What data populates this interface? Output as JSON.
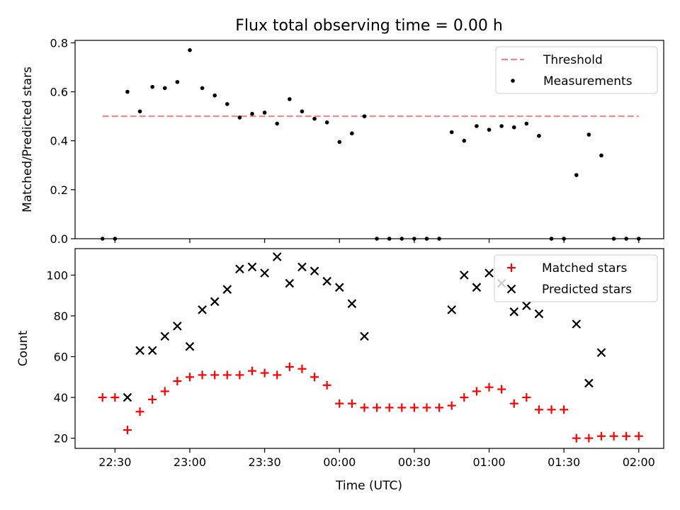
{
  "chart_data": {
    "type": "scatter",
    "title": "Flux total observing time = 0.00 h",
    "xlabel": "Time (UTC)",
    "x_ticks": [
      "22:30",
      "23:00",
      "23:30",
      "00:00",
      "00:30",
      "01:00",
      "01:30",
      "02:00"
    ],
    "x_tick_minutes": [
      1350,
      1380,
      1410,
      1440,
      1470,
      1500,
      1530,
      1560
    ],
    "x_range_minutes": [
      1334,
      1570
    ],
    "colors": {
      "threshold": "#ff7f7f",
      "measurements": "#000000",
      "matched": "#ff0000",
      "predicted": "#000000"
    },
    "panels": [
      {
        "ylabel": "Matched/Predicted stars",
        "ylim": [
          0,
          0.81
        ],
        "y_ticks": [
          "0.0",
          "0.2",
          "0.4",
          "0.6",
          "0.8"
        ],
        "y_tick_values": [
          0,
          0.2,
          0.4,
          0.6,
          0.8
        ],
        "legend": {
          "position": "top-right",
          "entries": [
            "Threshold",
            "Measurements"
          ]
        },
        "series": [
          {
            "name": "Threshold",
            "kind": "dashed-line",
            "x": [
              1345,
              1560
            ],
            "y": [
              0.5,
              0.5
            ]
          },
          {
            "name": "Measurements",
            "kind": "dot",
            "x": [
              1345,
              1350,
              1355,
              1360,
              1365,
              1370,
              1375,
              1380,
              1385,
              1390,
              1395,
              1400,
              1405,
              1410,
              1415,
              1420,
              1425,
              1430,
              1435,
              1440,
              1445,
              1450,
              1455,
              1460,
              1465,
              1470,
              1475,
              1480,
              1485,
              1490,
              1495,
              1500,
              1505,
              1510,
              1515,
              1520,
              1525,
              1530,
              1535,
              1540,
              1545,
              1550,
              1555,
              1560
            ],
            "y": [
              0,
              0,
              0.6,
              0.52,
              0.62,
              0.615,
              0.64,
              0.77,
              0.615,
              0.585,
              0.55,
              0.495,
              0.51,
              0.515,
              0.47,
              0.57,
              0.52,
              0.49,
              0.475,
              0.395,
              0.43,
              0.5,
              0,
              0,
              0,
              0,
              0,
              0,
              0.435,
              0.4,
              0.46,
              0.445,
              0.46,
              0.455,
              0.47,
              0.42,
              0,
              0,
              0.26,
              0.425,
              0.34,
              0,
              0,
              0
            ]
          }
        ]
      },
      {
        "ylabel": "Count",
        "ylim": [
          15,
          113
        ],
        "y_ticks": [
          "20",
          "40",
          "60",
          "80",
          "100"
        ],
        "y_tick_values": [
          20,
          40,
          60,
          80,
          100
        ],
        "legend": {
          "position": "top-right",
          "entries": [
            "Matched stars",
            "Predicted stars"
          ]
        },
        "series": [
          {
            "name": "Matched stars",
            "kind": "plus",
            "x": [
              1345,
              1350,
              1355,
              1360,
              1365,
              1370,
              1375,
              1380,
              1385,
              1390,
              1395,
              1400,
              1405,
              1410,
              1415,
              1420,
              1425,
              1430,
              1435,
              1440,
              1445,
              1450,
              1455,
              1460,
              1465,
              1470,
              1475,
              1480,
              1485,
              1490,
              1495,
              1500,
              1505,
              1510,
              1515,
              1520,
              1525,
              1530,
              1535,
              1540,
              1545,
              1550,
              1555,
              1560
            ],
            "y": [
              40,
              40,
              24,
              33,
              39,
              43,
              48,
              50,
              51,
              51,
              51,
              51,
              53,
              52,
              51,
              55,
              54,
              50,
              46,
              37,
              37,
              35,
              35,
              35,
              35,
              35,
              35,
              35,
              36,
              40,
              43,
              45,
              44,
              37,
              40,
              34,
              34,
              34,
              20,
              20,
              21,
              21,
              21,
              21
            ]
          },
          {
            "name": "Predicted stars",
            "kind": "x",
            "x": [
              1355,
              1360,
              1365,
              1370,
              1375,
              1380,
              1385,
              1390,
              1395,
              1400,
              1405,
              1410,
              1415,
              1420,
              1425,
              1430,
              1435,
              1440,
              1445,
              1450,
              1485,
              1490,
              1495,
              1500,
              1505,
              1510,
              1515,
              1520,
              1535,
              1540,
              1545
            ],
            "y": [
              40,
              63,
              63,
              70,
              75,
              65,
              83,
              87,
              93,
              103,
              104,
              101,
              109,
              96,
              104,
              102,
              97,
              94,
              86,
              70,
              83,
              100,
              94,
              101,
              96,
              82,
              85,
              81,
              76,
              47,
              62
            ]
          }
        ]
      }
    ]
  }
}
